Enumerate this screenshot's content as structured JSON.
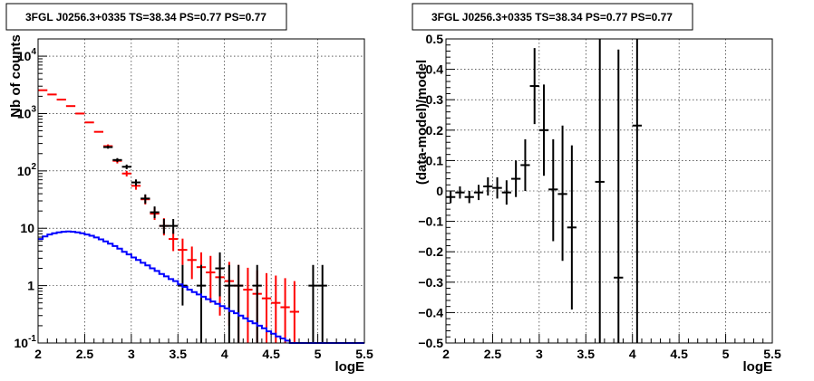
{
  "chart_data": [
    {
      "type": "scatter",
      "title": "3FGL J0256.3+0335 TS=38.34 PS=0.77 PS=0.77",
      "xlabel": "logE",
      "ylabel": "Nb of counts",
      "xlim": [
        2,
        5.5
      ],
      "ylim": [
        0.1,
        20000
      ],
      "ylog": true,
      "grid": true,
      "xticks": [
        "2",
        "2.5",
        "3",
        "3.5",
        "4",
        "4.5",
        "5",
        "5.5"
      ],
      "yticks": [
        {
          "v": 0.1,
          "label": "10",
          "exp": "-1"
        },
        {
          "v": 1,
          "label": "1",
          "exp": ""
        },
        {
          "v": 10,
          "label": "10",
          "exp": ""
        },
        {
          "v": 100,
          "label": "10",
          "exp": "2"
        },
        {
          "v": 1000,
          "label": "10",
          "exp": "3"
        },
        {
          "v": 10000,
          "label": "10",
          "exp": "4"
        }
      ],
      "series": [
        {
          "color": "#ff0000",
          "kind": "model_total",
          "points": [
            {
              "x": 2.05,
              "y": 2550,
              "lo": 2550,
              "hi": 2550
            },
            {
              "x": 2.15,
              "y": 2150,
              "lo": 2150,
              "hi": 2150
            },
            {
              "x": 2.25,
              "y": 1750,
              "lo": 1750,
              "hi": 1750
            },
            {
              "x": 2.35,
              "y": 1350,
              "lo": 1350,
              "hi": 1350
            },
            {
              "x": 2.45,
              "y": 1000,
              "lo": 1000,
              "hi": 1000
            },
            {
              "x": 2.55,
              "y": 700,
              "lo": 700,
              "hi": 700
            },
            {
              "x": 2.65,
              "y": 480,
              "lo": 480,
              "hi": 480
            },
            {
              "x": 2.75,
              "y": 270,
              "lo": 250,
              "hi": 290
            },
            {
              "x": 2.85,
              "y": 150,
              "lo": 135,
              "hi": 165
            },
            {
              "x": 2.95,
              "y": 90,
              "lo": 80,
              "hi": 100
            },
            {
              "x": 3.05,
              "y": 55,
              "lo": 47,
              "hi": 63
            },
            {
              "x": 3.15,
              "y": 32,
              "lo": 26,
              "hi": 38
            },
            {
              "x": 3.25,
              "y": 18,
              "lo": 14,
              "hi": 23
            },
            {
              "x": 3.35,
              "y": 11,
              "lo": 7.5,
              "hi": 15
            },
            {
              "x": 3.45,
              "y": 6.5,
              "lo": 4,
              "hi": 9.5
            },
            {
              "x": 3.55,
              "y": 4.2,
              "lo": 2.3,
              "hi": 6.6
            },
            {
              "x": 3.65,
              "y": 2.8,
              "lo": 1.3,
              "hi": 4.8
            },
            {
              "x": 3.75,
              "y": 2.1,
              "lo": 0.8,
              "hi": 3.8
            },
            {
              "x": 3.85,
              "y": 1.7,
              "lo": 0.5,
              "hi": 3.3
            },
            {
              "x": 3.95,
              "y": 1.4,
              "lo": 0.3,
              "hi": 2.9
            },
            {
              "x": 4.05,
              "y": 1.2,
              "lo": 0.2,
              "hi": 2.6
            },
            {
              "x": 4.15,
              "y": 1.0,
              "lo": 0.1,
              "hi": 2.3
            },
            {
              "x": 4.25,
              "y": 0.85,
              "lo": 0.1,
              "hi": 2.05
            },
            {
              "x": 4.35,
              "y": 0.72,
              "lo": 0.1,
              "hi": 1.85
            },
            {
              "x": 4.45,
              "y": 0.6,
              "lo": 0.1,
              "hi": 1.65
            },
            {
              "x": 4.55,
              "y": 0.5,
              "lo": 0.1,
              "hi": 1.5
            },
            {
              "x": 4.65,
              "y": 0.42,
              "lo": 0.1,
              "hi": 1.35
            },
            {
              "x": 4.75,
              "y": 0.35,
              "lo": 0.1,
              "hi": 1.2
            }
          ]
        },
        {
          "color": "#000000",
          "kind": "data",
          "points": [
            {
              "x": 2.75,
              "y": 260,
              "lo": 244,
              "hi": 276
            },
            {
              "x": 2.85,
              "y": 155,
              "lo": 143,
              "hi": 167
            },
            {
              "x": 2.95,
              "y": 118,
              "lo": 107,
              "hi": 129
            },
            {
              "x": 3.05,
              "y": 63,
              "lo": 55,
              "hi": 71
            },
            {
              "x": 3.15,
              "y": 33,
              "lo": 27,
              "hi": 39
            },
            {
              "x": 3.25,
              "y": 19,
              "lo": 15,
              "hi": 24
            },
            {
              "x": 3.35,
              "y": 11,
              "lo": 8,
              "hi": 14.5
            },
            {
              "x": 3.45,
              "y": 11,
              "lo": 8,
              "hi": 14.5
            },
            {
              "x": 3.55,
              "y": 1,
              "lo": 0.45,
              "hi": 2.3
            },
            {
              "x": 3.75,
              "y": 1,
              "lo": 0.1,
              "hi": 2.3
            },
            {
              "x": 3.95,
              "y": 2,
              "lo": 0.65,
              "hi": 3.8
            },
            {
              "x": 4.05,
              "y": 1,
              "lo": 0.1,
              "hi": 2.3
            },
            {
              "x": 4.15,
              "y": 1,
              "lo": 0.1,
              "hi": 2.3
            },
            {
              "x": 4.35,
              "y": 1,
              "lo": 0.1,
              "hi": 2.3
            },
            {
              "x": 4.95,
              "y": 1,
              "lo": 0.1,
              "hi": 2.3
            },
            {
              "x": 5.05,
              "y": 1,
              "lo": 0.1,
              "hi": 2.3
            }
          ]
        },
        {
          "color": "#0000ff",
          "kind": "step",
          "bins": [
            2.0,
            2.05,
            2.1,
            2.15,
            2.2,
            2.25,
            2.3,
            2.35,
            2.4,
            2.45,
            2.5,
            2.55,
            2.6,
            2.65,
            2.7,
            2.75,
            2.8,
            2.85,
            2.9,
            2.95,
            3.0,
            3.05,
            3.1,
            3.15,
            3.2,
            3.25,
            3.3,
            3.35,
            3.4,
            3.45,
            3.5,
            3.55,
            3.6,
            3.65,
            3.7,
            3.75,
            3.8,
            3.85,
            3.9,
            3.95,
            4.0,
            4.05,
            4.1,
            4.15,
            4.2,
            4.25,
            4.3,
            4.35,
            4.4,
            4.45,
            4.5,
            4.55,
            4.6,
            4.65,
            4.7,
            4.75,
            4.8,
            4.85,
            4.9,
            4.95,
            5.0,
            5.05,
            5.1,
            5.15,
            5.2,
            5.25,
            5.3,
            5.35,
            5.4,
            5.45,
            5.5
          ],
          "values": [
            6.5,
            7.2,
            7.8,
            8.2,
            8.5,
            8.7,
            8.8,
            8.7,
            8.5,
            8.2,
            7.8,
            7.4,
            6.9,
            6.4,
            5.9,
            5.4,
            4.9,
            4.4,
            3.9,
            3.5,
            3.1,
            2.8,
            2.5,
            2.25,
            2.0,
            1.8,
            1.6,
            1.45,
            1.3,
            1.2,
            1.05,
            0.95,
            0.85,
            0.77,
            0.7,
            0.64,
            0.58,
            0.53,
            0.48,
            0.44,
            0.4,
            0.36,
            0.33,
            0.3,
            0.27,
            0.24,
            0.22,
            0.2,
            0.18,
            0.16,
            0.145,
            0.13,
            0.12,
            0.11,
            0.1,
            0.1,
            0.1,
            0.1,
            0.1,
            0.1,
            0.1,
            0.1,
            0.1,
            0.1,
            0.1,
            0.1,
            0.1,
            0.1,
            0.1,
            0.1
          ]
        }
      ]
    },
    {
      "type": "scatter",
      "title": "3FGL J0256.3+0335 TS=38.34 PS=0.77 PS=0.77",
      "xlabel": "logE",
      "ylabel": "(data-model)/model",
      "xlim": [
        2,
        5.5
      ],
      "ylim": [
        -0.5,
        0.5
      ],
      "grid": true,
      "xticks": [
        "2",
        "2.5",
        "3",
        "3.5",
        "4",
        "4.5",
        "5",
        "5.5"
      ],
      "yticks": [
        "−0.5",
        "−0.4",
        "−0.3",
        "−0.2",
        "−0.1",
        "0",
        "0.1",
        "0.2",
        "0.3",
        "0.4",
        "0.5"
      ],
      "series": [
        {
          "color": "#000000",
          "points": [
            {
              "x": 2.05,
              "y": -0.02,
              "lo": -0.04,
              "hi": 0.0
            },
            {
              "x": 2.15,
              "y": -0.005,
              "lo": -0.025,
              "hi": 0.015
            },
            {
              "x": 2.25,
              "y": -0.02,
              "lo": -0.04,
              "hi": 0.0
            },
            {
              "x": 2.35,
              "y": -0.005,
              "lo": -0.03,
              "hi": 0.02
            },
            {
              "x": 2.45,
              "y": 0.015,
              "lo": -0.015,
              "hi": 0.045
            },
            {
              "x": 2.55,
              "y": 0.01,
              "lo": -0.025,
              "hi": 0.045
            },
            {
              "x": 2.65,
              "y": -0.005,
              "lo": -0.045,
              "hi": 0.035
            },
            {
              "x": 2.75,
              "y": 0.04,
              "lo": -0.02,
              "hi": 0.1
            },
            {
              "x": 2.85,
              "y": 0.085,
              "lo": 0.0,
              "hi": 0.17
            },
            {
              "x": 2.95,
              "y": 0.345,
              "lo": 0.22,
              "hi": 0.47
            },
            {
              "x": 3.05,
              "y": 0.2,
              "lo": 0.05,
              "hi": 0.35
            },
            {
              "x": 3.15,
              "y": 0.005,
              "lo": -0.165,
              "hi": 0.17
            },
            {
              "x": 3.25,
              "y": -0.01,
              "lo": -0.23,
              "hi": 0.215
            },
            {
              "x": 3.35,
              "y": -0.12,
              "lo": -0.39,
              "hi": 0.15
            },
            {
              "x": 3.65,
              "y": 0.03,
              "lo": -0.5,
              "hi": 0.5
            },
            {
              "x": 3.85,
              "y": -0.285,
              "lo": -0.5,
              "hi": 0.465
            },
            {
              "x": 4.05,
              "y": 0.215,
              "lo": -0.5,
              "hi": 0.5
            }
          ]
        }
      ]
    }
  ]
}
